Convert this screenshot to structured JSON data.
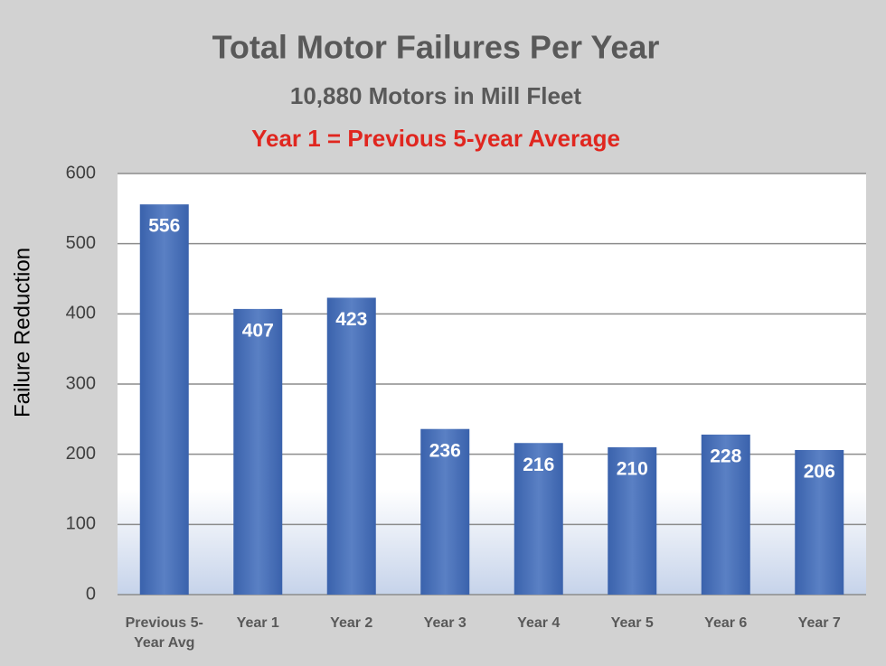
{
  "chart_data": {
    "type": "bar",
    "title": "Total Motor Failures Per Year",
    "subtitle": "10,880 Motors in Mill Fleet",
    "annotation": "Year 1 = Previous 5-year Average",
    "y_label": "Failure Reduction",
    "categories": [
      "Previous 5-Year Avg",
      "Year 1",
      "Year 2",
      "Year 3",
      "Year 4",
      "Year 5",
      "Year 6",
      "Year 7"
    ],
    "values": [
      556,
      407,
      423,
      236,
      216,
      210,
      228,
      206
    ],
    "color": "#3f67b0",
    "ylim": [
      0,
      600
    ],
    "yticks": [
      0,
      100,
      200,
      300,
      400,
      500,
      600
    ],
    "grid": true
  }
}
